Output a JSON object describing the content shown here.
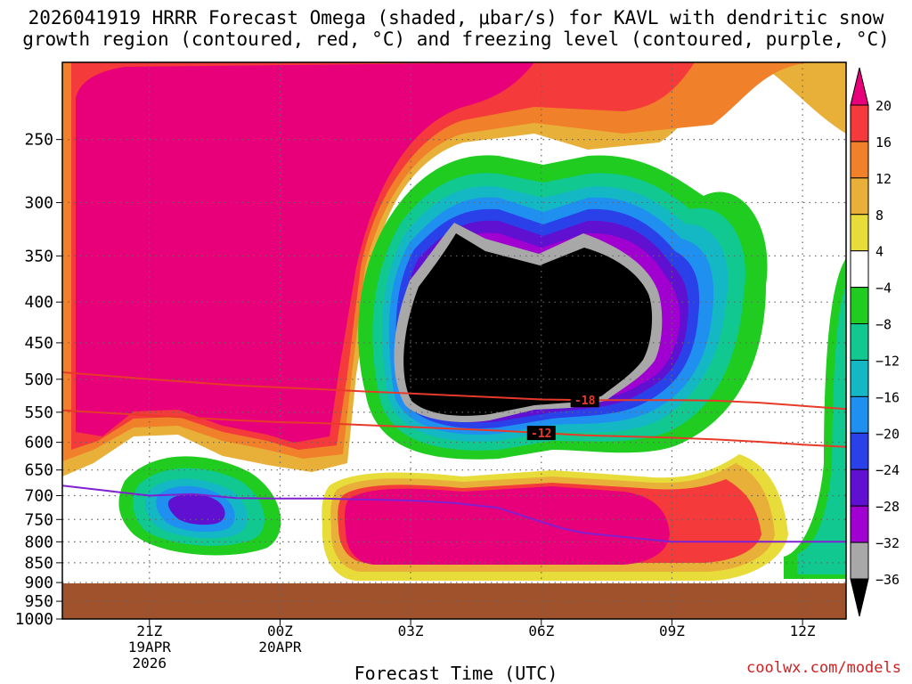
{
  "title": {
    "line1": "2026041919 HRRR Forecast Omega (shaded, μbar/s) for KAVL with dendritic snow",
    "line2": "growth region (contoured, red, °C) and freezing level (contoured, purple, °C)"
  },
  "credit": "coolwx.com/models",
  "chart_data": {
    "type": "heatmap",
    "title": "2026041919 HRRR Forecast Omega (shaded, μbar/s) for KAVL with dendritic snow growth region (contoured, red, °C) and freezing level (contoured, purple, °C)",
    "xlabel": "Forecast Time (UTC)",
    "ylabel": "",
    "x_unit": "hours since 2026-04-19 21Z",
    "xlim": [
      -2,
      16
    ],
    "y_scale": "log",
    "ylim": [
      1000,
      200
    ],
    "y_ticks": [
      250,
      300,
      350,
      400,
      450,
      500,
      550,
      600,
      650,
      700,
      750,
      800,
      850,
      900,
      950,
      1000
    ],
    "x_ticks": [
      {
        "x": 0,
        "lines": [
          "21Z",
          "19APR",
          "2026"
        ]
      },
      {
        "x": 3,
        "lines": [
          "00Z",
          "20APR"
        ]
      },
      {
        "x": 6,
        "lines": [
          "03Z"
        ]
      },
      {
        "x": 9,
        "lines": [
          "06Z"
        ]
      },
      {
        "x": 12,
        "lines": [
          "09Z"
        ]
      },
      {
        "x": 15,
        "lines": [
          "12Z"
        ]
      }
    ],
    "grid": true,
    "colorbar": {
      "labels": [
        "20",
        "16",
        "12",
        "8",
        "4",
        "−4",
        "−8",
        "−12",
        "−16",
        "−20",
        "−24",
        "−28",
        "−32",
        "−36"
      ],
      "bins": [
        {
          "min": 20,
          "max": null,
          "color": "#e8007a"
        },
        {
          "min": 16,
          "max": 20,
          "color": "#f43a3a"
        },
        {
          "min": 12,
          "max": 16,
          "color": "#f0802a"
        },
        {
          "min": 8,
          "max": 12,
          "color": "#e8b038"
        },
        {
          "min": 4,
          "max": 8,
          "color": "#e8dc3a"
        },
        {
          "min": -4,
          "max": 4,
          "color": "#ffffff"
        },
        {
          "min": -8,
          "max": -4,
          "color": "#1fcc1f"
        },
        {
          "min": -12,
          "max": -8,
          "color": "#10c890"
        },
        {
          "min": -16,
          "max": -12,
          "color": "#14b8c4"
        },
        {
          "min": -20,
          "max": -16,
          "color": "#1f90f0"
        },
        {
          "min": -24,
          "max": -20,
          "color": "#2a40e8"
        },
        {
          "min": -28,
          "max": -24,
          "color": "#6010d0"
        },
        {
          "min": -32,
          "max": -28,
          "color": "#a000d0"
        },
        {
          "min": -36,
          "max": -32,
          "color": "#a8a8a8"
        },
        {
          "min": null,
          "max": -36,
          "color": "#000000"
        }
      ]
    },
    "omega_field": [
      {
        "region": "strong-ascent-core",
        "value": -40,
        "time_range": [
          6,
          12.3
        ],
        "p_range": [
          330,
          625
        ]
      },
      {
        "region": "lower-ascent-cell",
        "value": -24,
        "time_range": [
          0.2,
          2.5
        ],
        "p_range": [
          640,
          850
        ]
      },
      {
        "region": "upper-left-subsidence",
        "value": 24,
        "time_range": [
          -2,
          6
        ],
        "p_range": [
          200,
          640
        ]
      },
      {
        "region": "low-level-subsidence",
        "value": 24,
        "time_range": [
          5.2,
          13.2
        ],
        "p_range": [
          715,
          930
        ]
      },
      {
        "region": "ground",
        "value": null,
        "time_range": [
          -2,
          16
        ],
        "p_range": [
          950,
          1000
        ]
      }
    ],
    "contours": [
      {
        "name": "-18",
        "color": "#e83a2a",
        "kind": "dendritic snow growth",
        "x": [
          -2,
          -1,
          0,
          2,
          3,
          4,
          5,
          6,
          7,
          8,
          9,
          10,
          11,
          12,
          13,
          14,
          15,
          16
        ],
        "y": [
          490,
          495,
          500,
          509,
          512,
          515,
          518,
          521,
          524,
          527,
          530,
          531,
          531,
          531,
          532,
          535,
          540,
          545
        ]
      },
      {
        "name": "-12",
        "color": "#e83a2a",
        "kind": "dendritic snow growth",
        "x": [
          -2,
          0,
          2,
          3,
          4,
          5,
          6,
          7,
          8,
          9,
          10,
          11,
          12,
          13,
          14,
          15,
          16
        ],
        "y": [
          547,
          555,
          563,
          566,
          568,
          571,
          574,
          577,
          580,
          584,
          588,
          590,
          592,
          595,
          599,
          604,
          608
        ]
      },
      {
        "name": "freezing level",
        "color": "#8020d0",
        "kind": "freezing level",
        "x": [
          -2,
          -1,
          0,
          1,
          2,
          3,
          4,
          5,
          6,
          7,
          8,
          9,
          9.5,
          10,
          11,
          12,
          13,
          14,
          15,
          16
        ],
        "y": [
          680,
          690,
          700,
          697,
          705,
          706,
          706,
          708,
          710,
          715,
          725,
          755,
          770,
          780,
          790,
          800,
          800,
          800,
          800,
          800
        ]
      }
    ]
  }
}
